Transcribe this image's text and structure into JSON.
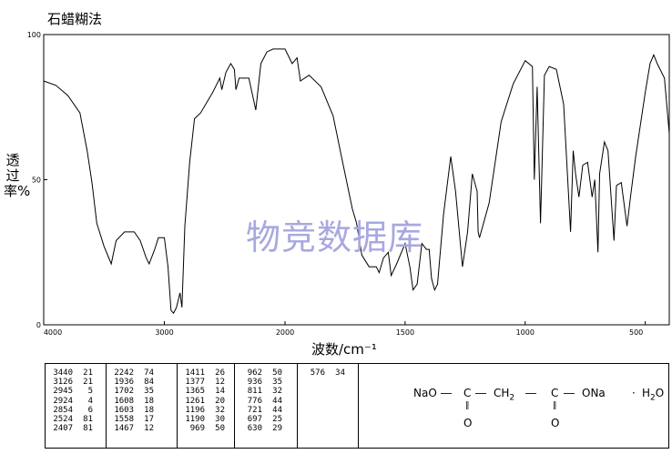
{
  "method": "石蜡糊法",
  "chart_data": {
    "type": "line",
    "xlabel": "波数/cm⁻¹",
    "ylabel": "透过率%",
    "xlim": [
      4000,
      400
    ],
    "ylim": [
      0,
      100
    ],
    "x_ticks": [
      "4000",
      "3000",
      "2000",
      "1500",
      "1000",
      "500"
    ],
    "y_ticks": [
      "100",
      "50",
      "0"
    ],
    "series": [
      {
        "points": [
          [
            4000,
            84
          ],
          [
            3900,
            82.5
          ],
          [
            3800,
            79
          ],
          [
            3700,
            73
          ],
          [
            3640,
            60
          ],
          [
            3600,
            49
          ],
          [
            3560,
            35
          ],
          [
            3500,
            27
          ],
          [
            3440,
            21
          ],
          [
            3400,
            29
          ],
          [
            3330,
            32
          ],
          [
            3250,
            32
          ],
          [
            3200,
            29
          ],
          [
            3150,
            23
          ],
          [
            3126,
            21
          ],
          [
            3080,
            26
          ],
          [
            3050,
            30
          ],
          [
            3000,
            30
          ],
          [
            2970,
            20
          ],
          [
            2945,
            5
          ],
          [
            2924,
            4
          ],
          [
            2900,
            6
          ],
          [
            2870,
            11
          ],
          [
            2854,
            6
          ],
          [
            2830,
            34
          ],
          [
            2790,
            56
          ],
          [
            2750,
            71
          ],
          [
            2700,
            73
          ],
          [
            2600,
            80
          ],
          [
            2540,
            85
          ],
          [
            2524,
            81
          ],
          [
            2490,
            87
          ],
          [
            2450,
            90
          ],
          [
            2420,
            88
          ],
          [
            2407,
            81
          ],
          [
            2380,
            85
          ],
          [
            2300,
            85
          ],
          [
            2242,
            74
          ],
          [
            2200,
            90
          ],
          [
            2150,
            94
          ],
          [
            2100,
            95
          ],
          [
            2000,
            95
          ],
          [
            1970,
            90
          ],
          [
            1950,
            92
          ],
          [
            1936,
            84
          ],
          [
            1900,
            86
          ],
          [
            1850,
            82
          ],
          [
            1800,
            72
          ],
          [
            1760,
            56
          ],
          [
            1720,
            40
          ],
          [
            1702,
            35
          ],
          [
            1680,
            24
          ],
          [
            1650,
            20
          ],
          [
            1620,
            20
          ],
          [
            1608,
            18
          ],
          [
            1590,
            23
          ],
          [
            1570,
            25
          ],
          [
            1558,
            17
          ],
          [
            1535,
            21
          ],
          [
            1500,
            28
          ],
          [
            1480,
            20
          ],
          [
            1467,
            12
          ],
          [
            1450,
            14
          ],
          [
            1430,
            28
          ],
          [
            1411,
            26
          ],
          [
            1400,
            26
          ],
          [
            1390,
            16
          ],
          [
            1377,
            12
          ],
          [
            1365,
            14
          ],
          [
            1340,
            38
          ],
          [
            1310,
            58
          ],
          [
            1290,
            46
          ],
          [
            1261,
            20
          ],
          [
            1240,
            32
          ],
          [
            1220,
            52
          ],
          [
            1200,
            46
          ],
          [
            1196,
            32
          ],
          [
            1190,
            30
          ],
          [
            1150,
            42
          ],
          [
            1100,
            70
          ],
          [
            1050,
            83
          ],
          [
            1000,
            91
          ],
          [
            970,
            89
          ],
          [
            962,
            50
          ],
          [
            950,
            82
          ],
          [
            936,
            35
          ],
          [
            920,
            86
          ],
          [
            900,
            89
          ],
          [
            870,
            88
          ],
          [
            840,
            76
          ],
          [
            811,
            32
          ],
          [
            800,
            60
          ],
          [
            790,
            52
          ],
          [
            776,
            44
          ],
          [
            760,
            55
          ],
          [
            740,
            56
          ],
          [
            721,
            44
          ],
          [
            710,
            50
          ],
          [
            697,
            25
          ],
          [
            690,
            52
          ],
          [
            670,
            63
          ],
          [
            655,
            60
          ],
          [
            630,
            29
          ],
          [
            620,
            48
          ],
          [
            600,
            49
          ],
          [
            576,
            34
          ],
          [
            560,
            45
          ],
          [
            540,
            58
          ],
          [
            500,
            80
          ],
          [
            480,
            90
          ],
          [
            465,
            93
          ],
          [
            450,
            90
          ],
          [
            420,
            85
          ],
          [
            400,
            66
          ]
        ]
      }
    ],
    "peaks": [
      [
        "3440",
        "21"
      ],
      [
        "3126",
        "21"
      ],
      [
        "2945",
        "5"
      ],
      [
        "2924",
        "4"
      ],
      [
        "2854",
        "6"
      ],
      [
        "2524",
        "81"
      ],
      [
        "2407",
        "81"
      ],
      [
        "2242",
        "74"
      ],
      [
        "1936",
        "84"
      ],
      [
        "1702",
        "35"
      ],
      [
        "1608",
        "18"
      ],
      [
        "1603",
        "18"
      ],
      [
        "1558",
        "17"
      ],
      [
        "1467",
        "12"
      ],
      [
        "1411",
        "26"
      ],
      [
        "1377",
        "12"
      ],
      [
        "1365",
        "14"
      ],
      [
        "1261",
        "20"
      ],
      [
        "1196",
        "32"
      ],
      [
        "1190",
        "30"
      ],
      [
        "969",
        "50"
      ],
      [
        "962",
        "50"
      ],
      [
        "936",
        "35"
      ],
      [
        "811",
        "32"
      ],
      [
        "776",
        "44"
      ],
      [
        "721",
        "44"
      ],
      [
        "697",
        "25"
      ],
      [
        "630",
        "29"
      ],
      [
        "576",
        "34"
      ]
    ]
  },
  "watermark": "物竞数据库",
  "structure": {
    "left_group": "NaO",
    "carbon1": "C",
    "ch2": "CH",
    "ch2_sub": "2",
    "carbon2": "C",
    "right_group": "ONa",
    "dot": "·",
    "water": "H",
    "water_sub": "2",
    "water_o": "O",
    "oxygen1": "O",
    "oxygen2": "O"
  }
}
